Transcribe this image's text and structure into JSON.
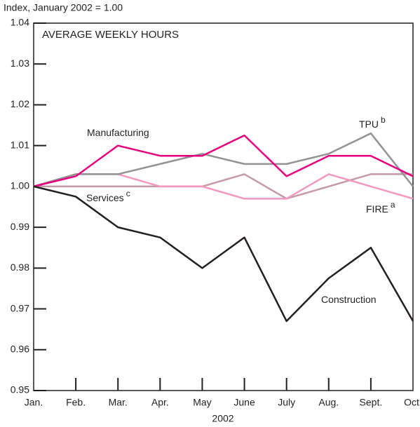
{
  "chart_data": {
    "type": "line",
    "title": "AVERAGE WEEKLY HOURS",
    "y_axis_label": "Index, January 2002 = 1.00",
    "x_axis_label": "2002",
    "categories": [
      "Jan.",
      "Feb.",
      "Mar.",
      "Apr.",
      "May",
      "June",
      "July",
      "Aug.",
      "Sept.",
      "Oct."
    ],
    "ylim": [
      0.95,
      1.04
    ],
    "yticks": [
      {
        "value": 0.95,
        "label": "0.95"
      },
      {
        "value": 0.96,
        "label": "0.96"
      },
      {
        "value": 0.97,
        "label": "0.97"
      },
      {
        "value": 0.98,
        "label": "0.98"
      },
      {
        "value": 0.99,
        "label": "0.99"
      },
      {
        "value": 1.0,
        "label": "1.00"
      },
      {
        "value": 1.01,
        "label": "1.01"
      },
      {
        "value": 1.02,
        "label": "1.02"
      },
      {
        "value": 1.03,
        "label": "1.03"
      },
      {
        "value": 1.04,
        "label": "1.04"
      }
    ],
    "series": [
      {
        "name": "Services",
        "superscript": "c",
        "color": "#c49aa6",
        "values": [
          1.0,
          1.0,
          1.0,
          1.0,
          1.0,
          1.003,
          0.997,
          1.0,
          1.003,
          1.003
        ]
      },
      {
        "name": "FIRE",
        "superscript": "a",
        "color": "#f297bf",
        "values": [
          1.0,
          1.003,
          1.003,
          1.0,
          1.0,
          0.997,
          0.997,
          1.003,
          1.0,
          0.997
        ]
      },
      {
        "name": "TPU",
        "superscript": "b",
        "color": "#939393",
        "values": [
          1.0,
          1.003,
          1.003,
          1.0055,
          1.008,
          1.0055,
          1.0055,
          1.008,
          1.013,
          1.0
        ]
      },
      {
        "name": "Manufacturing",
        "color": "#e6007e",
        "values": [
          1.0,
          1.0025,
          1.01,
          1.0075,
          1.0075,
          1.0125,
          1.0025,
          1.0075,
          1.0075,
          1.0025
        ]
      },
      {
        "name": "Construction",
        "color": "#231f20",
        "values": [
          1.0,
          0.9975,
          0.99,
          0.9875,
          0.98,
          0.9875,
          0.967,
          0.9775,
          0.985,
          0.967
        ]
      }
    ]
  }
}
